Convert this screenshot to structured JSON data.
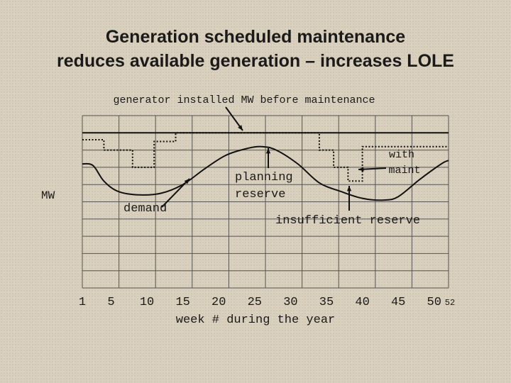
{
  "title_line1": "Generation scheduled maintenance",
  "title_line2": "reduces available generation – increases LOLE",
  "chart_data": {
    "type": "line",
    "xlabel": "week # during the year",
    "ylabel": "MW",
    "xlim": [
      1,
      52
    ],
    "ylim": [
      0,
      100
    ],
    "grid": true,
    "x_ticks": [
      {
        "value": 1,
        "label": "1"
      },
      {
        "value": 5,
        "label": "5"
      },
      {
        "value": 10,
        "label": "10"
      },
      {
        "value": 15,
        "label": "15"
      },
      {
        "value": 20,
        "label": "20"
      },
      {
        "value": 25,
        "label": "25"
      },
      {
        "value": 30,
        "label": "30"
      },
      {
        "value": 35,
        "label": "35"
      },
      {
        "value": 40,
        "label": "40"
      },
      {
        "value": 45,
        "label": "45"
      },
      {
        "value": 50,
        "label": "50"
      },
      {
        "value": 52,
        "label": "52"
      }
    ],
    "series": [
      {
        "name": "generator installed MW before maintenance",
        "style": "solid",
        "x": [
          1,
          52
        ],
        "y": [
          90,
          90
        ]
      },
      {
        "name": "with maint",
        "style": "dotted",
        "x": [
          1,
          4,
          4,
          8,
          8,
          11,
          11,
          14,
          14,
          34,
          34,
          36,
          36,
          38,
          38,
          40,
          40,
          52
        ],
        "y": [
          86,
          86,
          80,
          80,
          70,
          70,
          85,
          85,
          90,
          90,
          80,
          80,
          70,
          70,
          62,
          62,
          82,
          82
        ]
      },
      {
        "name": "demand",
        "style": "solid",
        "x": [
          1,
          2.5,
          4,
          6,
          9,
          12,
          15,
          18,
          21,
          24,
          26,
          28,
          31,
          34,
          37,
          40,
          43,
          45,
          48,
          51,
          52
        ],
        "y": [
          72,
          71,
          62,
          56,
          54,
          55,
          60,
          69,
          77,
          81,
          82,
          80,
          72,
          61,
          56,
          52,
          51,
          53,
          63,
          72,
          74
        ]
      }
    ],
    "annotations": [
      {
        "text": "generator installed MW before maintenance"
      },
      {
        "text": "planning"
      },
      {
        "text": "reserve"
      },
      {
        "text": "with"
      },
      {
        "text": "maint"
      },
      {
        "text": "demand"
      },
      {
        "text": "insufficient reserve"
      }
    ]
  }
}
